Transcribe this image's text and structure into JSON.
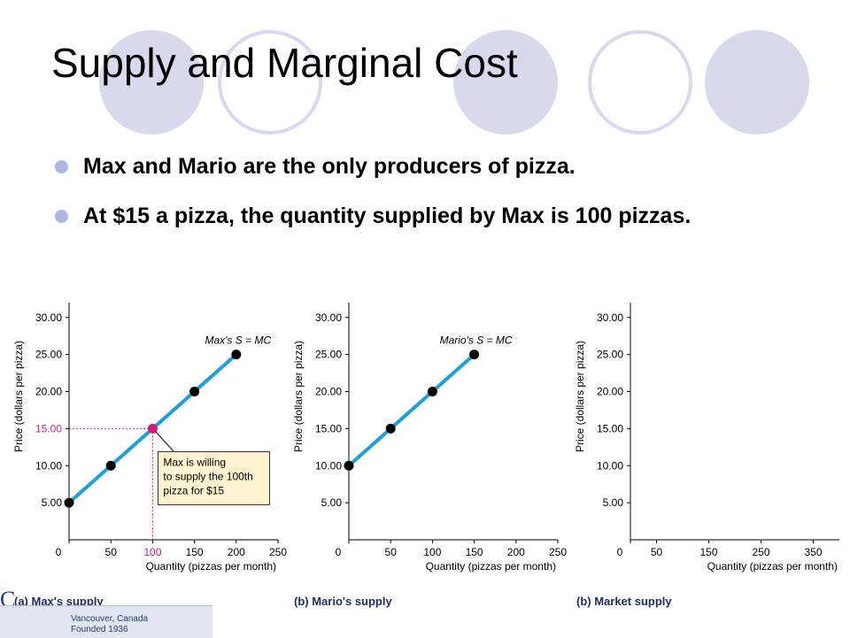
{
  "slide": {
    "title": "Supply and Marginal Cost",
    "bullets": [
      "Max and Mario are the only producers of pizza.",
      "At $15 a pizza, the quantity supplied by Max is 100 pizzas."
    ]
  },
  "colors": {
    "accent": "#d9d9ee",
    "bullet": "#aeb6e6",
    "supply_line": "#1aa0dc",
    "highlight": "#d81b7a",
    "callout_bg": "#fdf3cf",
    "caption": "#1f2f66"
  },
  "chart_data": [
    {
      "type": "line",
      "caption": "(a) Max's supply",
      "ylabel": "Price (dollars per pizza)",
      "xlabel": "Quantity (pizzas per month)",
      "xlim": [
        0,
        250
      ],
      "ylim": [
        0,
        32
      ],
      "x_ticks": [
        "0",
        "50",
        "100",
        "150",
        "200",
        "250"
      ],
      "y_ticks": [
        "5.00",
        "10.00",
        "15.00",
        "20.00",
        "25.00",
        "30.00"
      ],
      "series": [
        {
          "name": "Max's S = MC",
          "x": [
            0,
            50,
            100,
            150,
            200
          ],
          "y": [
            5,
            10,
            15,
            20,
            25
          ]
        }
      ],
      "highlight": {
        "x": 100,
        "y": 15,
        "x_label": "100",
        "y_label": "15.00"
      },
      "annotation": [
        "Max is willing",
        "to supply the 100th",
        "pizza for $15"
      ]
    },
    {
      "type": "line",
      "caption": "(b) Mario's supply",
      "ylabel": "Price (dollars per pizza)",
      "xlabel": "Quantity (pizzas per month)",
      "xlim": [
        0,
        250
      ],
      "ylim": [
        0,
        32
      ],
      "x_ticks": [
        "0",
        "50",
        "100",
        "150",
        "200",
        "250"
      ],
      "y_ticks": [
        "5.00",
        "10.00",
        "15.00",
        "20.00",
        "25.00",
        "30.00"
      ],
      "series": [
        {
          "name": "Mario's S = MC",
          "x": [
            0,
            50,
            100,
            150
          ],
          "y": [
            10,
            15,
            20,
            25
          ]
        }
      ]
    },
    {
      "type": "line",
      "caption": "(b) Market supply",
      "ylabel": "Price (dollars per pizza)",
      "xlabel": "Quantity (pizzas per month)",
      "xlim": [
        0,
        400
      ],
      "ylim": [
        0,
        32
      ],
      "x_ticks": [
        "0",
        "50",
        "150",
        "250",
        "350"
      ],
      "x_tick_values": [
        0,
        50,
        150,
        250,
        350
      ],
      "y_ticks": [
        "5.00",
        "10.00",
        "15.00",
        "20.00",
        "25.00",
        "30.00"
      ],
      "series": []
    }
  ],
  "footer": {
    "logo_letter": "C",
    "logo_lines": [
      "Vancouver, Canada",
      "Founded 1936"
    ]
  }
}
